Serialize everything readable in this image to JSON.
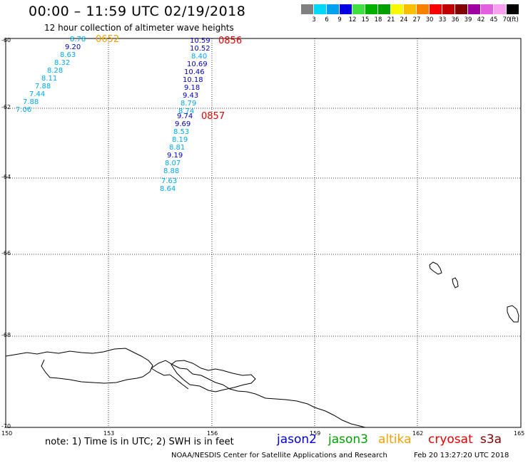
{
  "header": {
    "title": "00:00 – 11:59 UTC 02/19/2018",
    "subtitle": "12 hour collection of altimeter wave heights"
  },
  "color_scale": {
    "colors": [
      "#808080",
      "#00d8f8",
      "#00a0f0",
      "#0000e0",
      "#40e040",
      "#00b000",
      "#00a000",
      "#f8f800",
      "#f8c000",
      "#f88000",
      "#f80000",
      "#c00000",
      "#800000",
      "#a000a0",
      "#e060e0",
      "#f8a0f0",
      "#000000"
    ],
    "labels": [
      "3",
      "6",
      "9",
      "12",
      "15",
      "18",
      "21",
      "24",
      "27",
      "30",
      "33",
      "36",
      "39",
      "42",
      "45",
      "70"
    ],
    "unit": "(ft)"
  },
  "axes": {
    "lat_labels": [
      "-60",
      "-62",
      "-64",
      "-66",
      "-68",
      "-70"
    ],
    "lon_labels": [
      "150",
      "153",
      "156",
      "159",
      "162",
      "165"
    ]
  },
  "tracks": [
    {
      "time": "0652",
      "time_color": "#f0a000",
      "color": "#00a8e8",
      "values": [
        "8.78",
        "9.20",
        "8.63",
        "8.32",
        "8.28",
        "8.11",
        "7.88",
        "7.44",
        "7.88",
        "7.06"
      ],
      "value_colors": [
        "#00a8e8",
        "#0000c0",
        "#00a8e8",
        "#00a8e8",
        "#00a8e8",
        "#00a8e8",
        "#00a8e8",
        "#00a8e8",
        "#00a8e8",
        "#00a8e8"
      ]
    },
    {
      "time": "0856",
      "time_color": "#e00000",
      "values": [
        "10.59",
        "10.52",
        "8.40",
        "10.69",
        "10.46",
        "10.18",
        "9.18",
        "9.43",
        "8.79",
        "8.74"
      ],
      "value_colors": [
        "#0000c0",
        "#0000c0",
        "#00a8e8",
        "#0000c0",
        "#0000c0",
        "#0000c0",
        "#0000c0",
        "#0000c0",
        "#00a8e8",
        "#00a8e8"
      ]
    },
    {
      "time": "0857",
      "time_color": "#e00000",
      "values": [
        "9.74",
        "9.69",
        "8.53",
        "8.19",
        "8.81",
        "9.19",
        "8.07",
        "8.88",
        "7.63",
        "8.64"
      ],
      "value_colors": [
        "#0000c0",
        "#0000c0",
        "#00a8e8",
        "#00a8e8",
        "#00a8e8",
        "#0000c0",
        "#00a8e8",
        "#00a8e8",
        "#00a8e8",
        "#00a8e8"
      ]
    }
  ],
  "footer": {
    "note": "note: 1) Time is in UTC; 2) SWH is in feet",
    "satellites": [
      {
        "name": "jason2",
        "color": "#0000d0"
      },
      {
        "name": "jason3",
        "color": "#00a000"
      },
      {
        "name": "altika",
        "color": "#f0a000"
      },
      {
        "name": "cryosat",
        "color": "#e00000"
      },
      {
        "name": "s3a",
        "color": "#800000"
      }
    ],
    "credit": "NOAA/NESDIS Center for Satellite Applications and Research",
    "timestamp": "Feb 20 13:27:20 UTC 2018"
  }
}
